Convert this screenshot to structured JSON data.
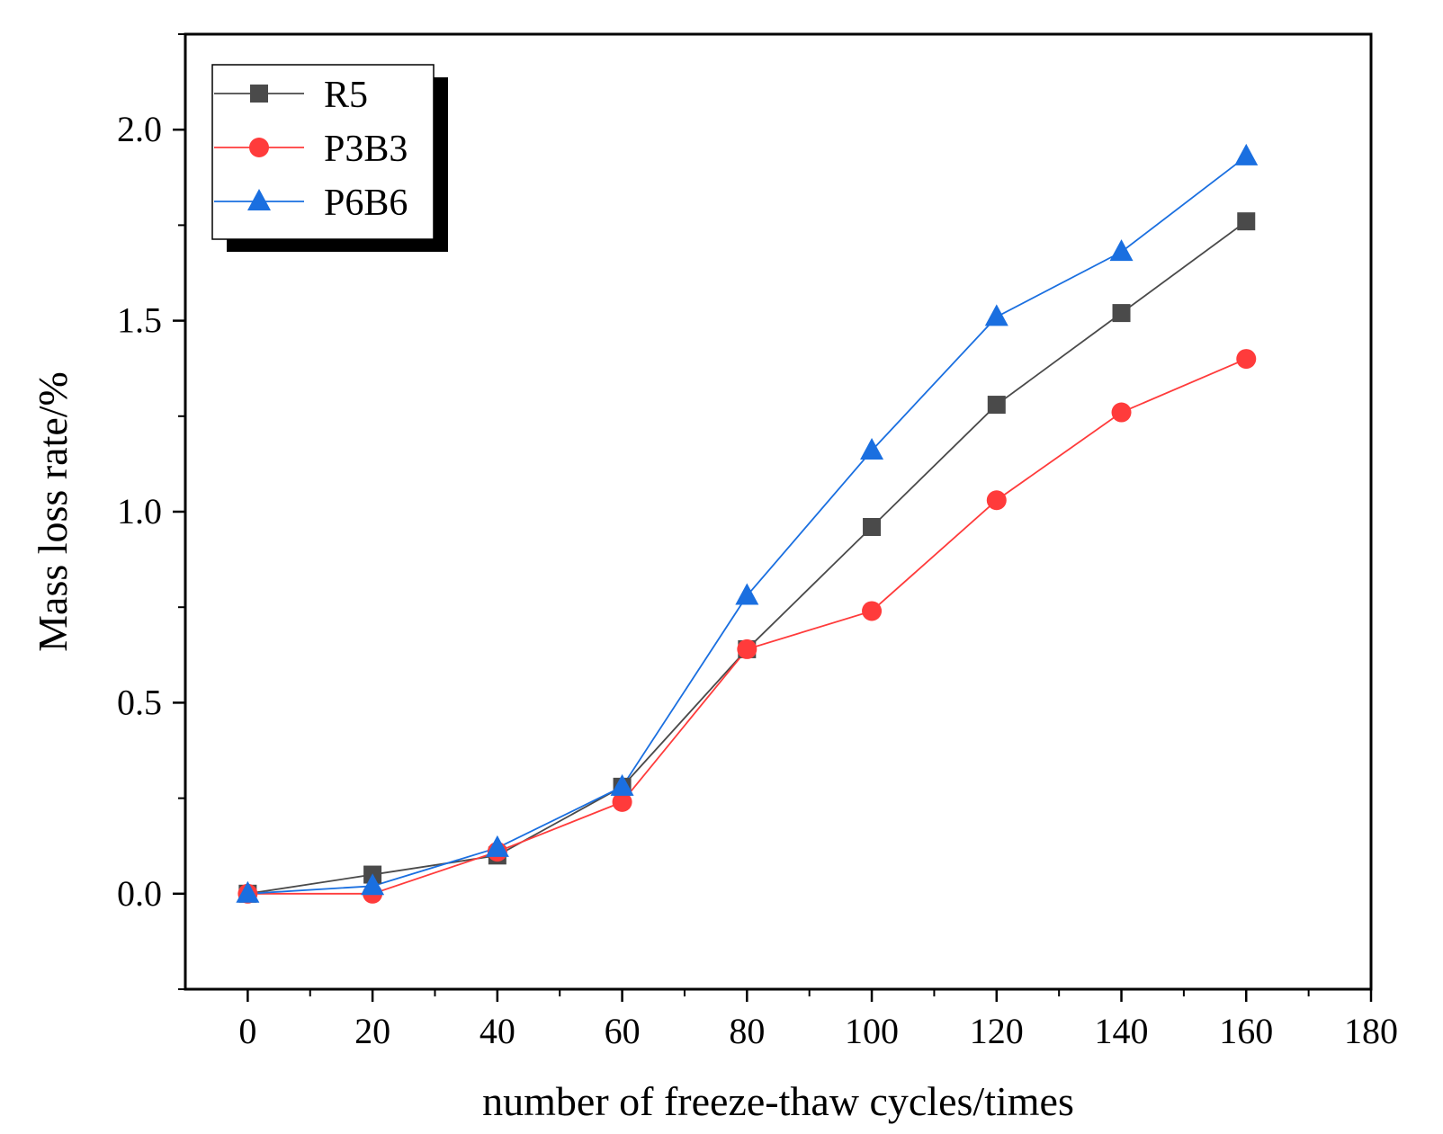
{
  "chart_data": {
    "type": "line",
    "title": "",
    "xlabel": "number of freeze-thaw cycles/times",
    "ylabel": "Mass loss rate/%",
    "xlim": [
      -10,
      180
    ],
    "ylim": [
      -0.25,
      2.25
    ],
    "xticks": [
      0,
      20,
      40,
      60,
      80,
      100,
      120,
      140,
      160,
      180
    ],
    "yticks": [
      0.0,
      0.5,
      1.0,
      1.5,
      2.0
    ],
    "xtick_labels": [
      "0",
      "20",
      "40",
      "60",
      "80",
      "100",
      "120",
      "140",
      "160",
      "180"
    ],
    "ytick_labels": [
      "0.0",
      "0.5",
      "1.0",
      "1.5",
      "2.0"
    ],
    "grid": false,
    "legend_position": "top-left",
    "x": [
      0,
      20,
      40,
      60,
      80,
      100,
      120,
      140,
      160
    ],
    "series": [
      {
        "name": "R5",
        "color": "#4a4a4a",
        "marker": "square",
        "values": [
          0.0,
          0.05,
          0.1,
          0.28,
          0.64,
          0.96,
          1.28,
          1.52,
          1.76
        ]
      },
      {
        "name": "P3B3",
        "color": "#ff3b3b",
        "marker": "circle",
        "values": [
          0.0,
          0.0,
          0.11,
          0.24,
          0.64,
          0.74,
          1.03,
          1.26,
          1.4
        ]
      },
      {
        "name": "P6B6",
        "color": "#1a6fe0",
        "marker": "triangle",
        "values": [
          0.0,
          0.02,
          0.12,
          0.28,
          0.78,
          1.16,
          1.51,
          1.68,
          1.93
        ]
      }
    ]
  }
}
